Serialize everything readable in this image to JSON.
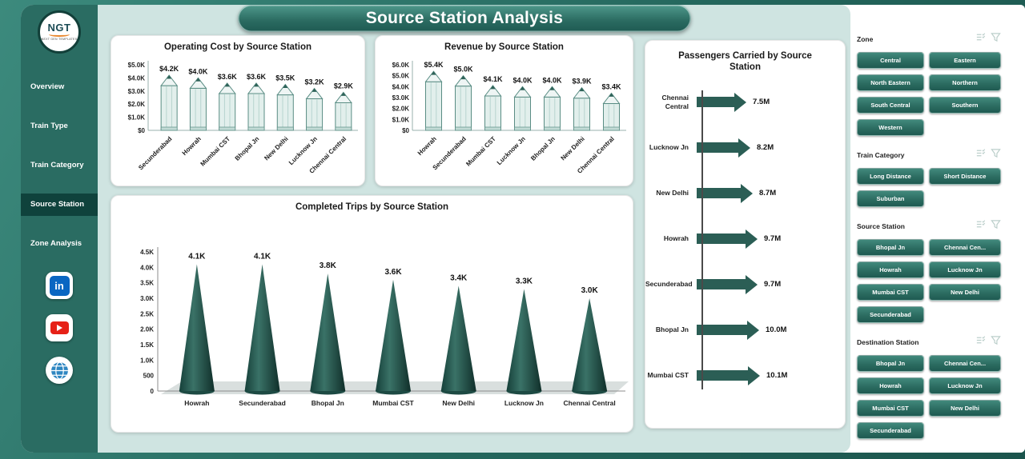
{
  "app": {
    "title": "Source Station Analysis"
  },
  "sidebar": {
    "logo": {
      "text": "NGT",
      "subtext": "NEXT GEN TEMPLATES"
    },
    "items": [
      {
        "label": "Overview",
        "active": false
      },
      {
        "label": "Train Type",
        "active": false
      },
      {
        "label": "Train Category",
        "active": false
      },
      {
        "label": "Source Station",
        "active": true
      },
      {
        "label": "Zone Analysis",
        "active": false
      }
    ],
    "social_icons": [
      "linkedin",
      "youtube",
      "globe"
    ]
  },
  "chart_data": [
    {
      "type": "bar",
      "bar_style": "pencil",
      "title": "Operating Cost by Source Station",
      "categories": [
        "Secunderabad",
        "Howrah",
        "Mumbai CST",
        "Bhopal Jn",
        "New Delhi",
        "Lucknow Jn",
        "Chennai Central"
      ],
      "values": [
        4200,
        4000,
        3600,
        3600,
        3500,
        3200,
        2900
      ],
      "labels": [
        "$4.2K",
        "$4.0K",
        "$3.6K",
        "$3.6K",
        "$3.5K",
        "$3.2K",
        "$2.9K"
      ],
      "y_ticks": [
        "$5.0K",
        "$4.0K",
        "$3.0K",
        "$2.0K",
        "$1.0K",
        "$0"
      ],
      "ylim": [
        0,
        5000
      ],
      "xlabel": "",
      "ylabel": "",
      "grid": false,
      "legend": "none"
    },
    {
      "type": "bar",
      "bar_style": "pencil",
      "title": "Revenue by Source Station",
      "categories": [
        "Howrah",
        "Secunderabad",
        "Mumbai CST",
        "Lucknow Jn",
        "Bhopal Jn",
        "New Delhi",
        "Chennai Central"
      ],
      "values": [
        5400,
        5000,
        4100,
        4000,
        4000,
        3900,
        3400
      ],
      "labels": [
        "$5.4K",
        "$5.0K",
        "$4.1K",
        "$4.0K",
        "$4.0K",
        "$3.9K",
        "$3.4K"
      ],
      "y_ticks": [
        "$6.0K",
        "$5.0K",
        "$4.0K",
        "$3.0K",
        "$2.0K",
        "$1.0K",
        "$0"
      ],
      "ylim": [
        0,
        6000
      ],
      "xlabel": "",
      "ylabel": "",
      "grid": false,
      "legend": "none"
    },
    {
      "type": "bar",
      "bar_style": "cone",
      "title": "Completed Trips by Source Station",
      "categories": [
        "Howrah",
        "Secunderabad",
        "Bhopal Jn",
        "Mumbai CST",
        "New Delhi",
        "Lucknow Jn",
        "Chennai Central"
      ],
      "values": [
        4100,
        4100,
        3800,
        3600,
        3400,
        3300,
        3000
      ],
      "labels": [
        "4.1K",
        "4.1K",
        "3.8K",
        "3.6K",
        "3.4K",
        "3.3K",
        "3.0K"
      ],
      "y_ticks": [
        "4.5K",
        "4.0K",
        "3.5K",
        "3.0K",
        "2.5K",
        "2.0K",
        "1.5K",
        "1.0K",
        "500",
        "0"
      ],
      "ylim": [
        0,
        4500
      ],
      "xlabel": "",
      "ylabel": "",
      "grid": false,
      "legend": "none"
    },
    {
      "type": "bar",
      "bar_style": "arrow",
      "orientation": "horizontal",
      "title": "Passengers Carried by Source Station",
      "categories": [
        "Chennai Central",
        "Lucknow Jn",
        "New Delhi",
        "Howrah",
        "Secunderabad",
        "Bhopal Jn",
        "Mumbai CST"
      ],
      "values": [
        7.5,
        8.2,
        8.7,
        9.7,
        9.7,
        10.0,
        10.1
      ],
      "labels": [
        "7.5M",
        "8.2M",
        "8.7M",
        "9.7M",
        "9.7M",
        "10.0M",
        "10.1M"
      ],
      "xlim": [
        0,
        10.1
      ],
      "xlabel": "",
      "ylabel": "",
      "grid": false,
      "legend": "none"
    }
  ],
  "filters": {
    "header_icons": [
      "multi-select-icon",
      "filter-icon"
    ],
    "groups": [
      {
        "title": "Zone",
        "options": [
          "Central",
          "Eastern",
          "North Eastern",
          "Northern",
          "South Central",
          "Southern",
          "Western"
        ]
      },
      {
        "title": "Train Category",
        "options": [
          "Long Distance",
          "Short Distance",
          "Suburban"
        ]
      },
      {
        "title": "Source Station",
        "options": [
          "Bhopal Jn",
          "Chennai Cen...",
          "Howrah",
          "Lucknow Jn",
          "Mumbai CST",
          "New Delhi",
          "Secunderabad"
        ]
      },
      {
        "title": "Destination Station",
        "options": [
          "Bhopal Jn",
          "Chennai Cen...",
          "Howrah",
          "Lucknow Jn",
          "Mumbai CST",
          "New Delhi",
          "Secunderabad"
        ]
      }
    ]
  },
  "colors": {
    "frame": "#24675d",
    "sidebar": "#2a6c62",
    "sidebar_active": "#0f423c",
    "mint_background": "#cfe4e1",
    "dark_teal": "#2b5e55",
    "pencil_body": "#e2efec",
    "pencil_stroke": "#5a8d84",
    "pencil_stripe": "#b7d4cf",
    "pencil_lead": "#2e6258",
    "cone_dark": "#153f39",
    "cone_light": "#3a7267",
    "button_top": "#41897c",
    "button_bottom": "#1f5a51",
    "axis_text": "#222222"
  }
}
